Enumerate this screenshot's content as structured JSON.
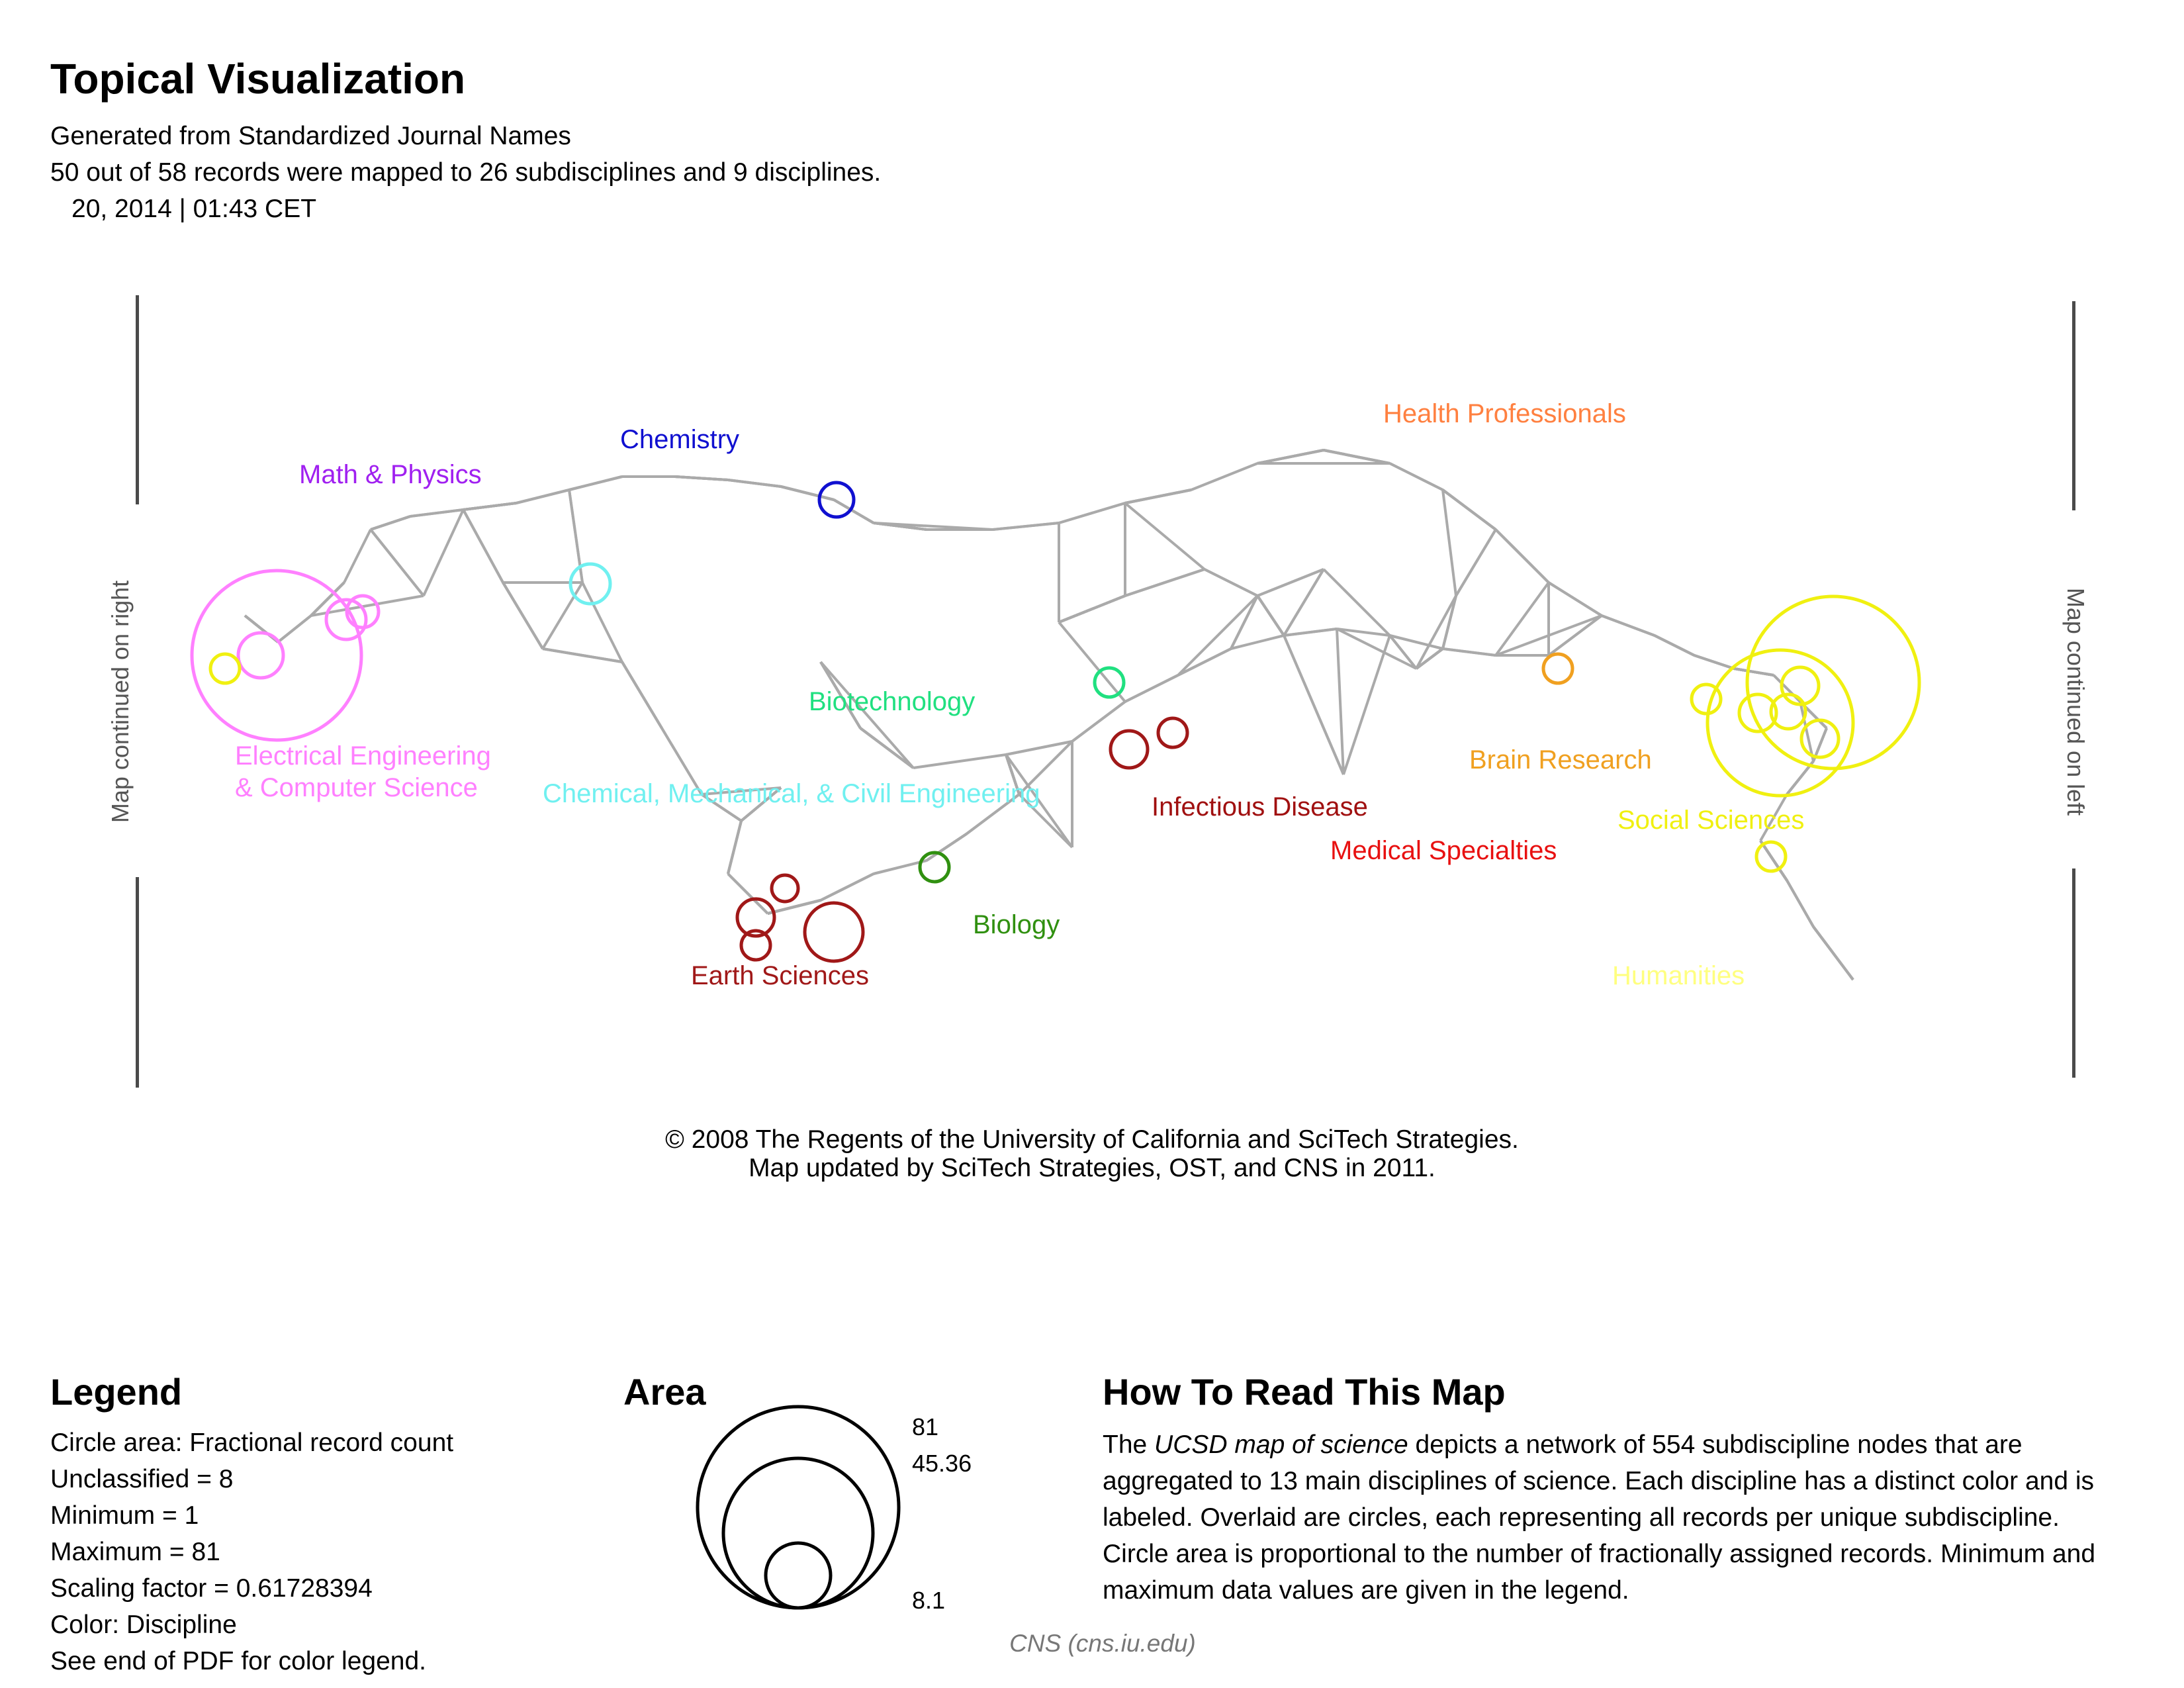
{
  "header": {
    "title": "Topical Visualization",
    "line1": "Generated from Standardized Journal Names",
    "line2": "50 out of 58 records were mapped to 26 subdisciplines and 9 disciplines.",
    "line3": "20, 2014 | 01:43    CET"
  },
  "map": {
    "side_left": "Map continued on right",
    "side_right": "Map continued on left",
    "edge_color": "#aaaaaa",
    "disciplines": [
      {
        "label": "Math & Physics",
        "color": "#a020f0"
      },
      {
        "label": "Chemistry",
        "color": "#1010d0"
      },
      {
        "label": "Health Professionals",
        "color": "#ff8040"
      },
      {
        "label": "Electrical Engineering",
        "color": "#ff80ff"
      },
      {
        "label": "& Computer Science",
        "color": "#ff80ff"
      },
      {
        "label": "Biotechnology",
        "color": "#20e080"
      },
      {
        "label": "Chemical, Mechanical, & Civil Engineering",
        "color": "#70f0f0"
      },
      {
        "label": "Infectious Disease",
        "color": "#a01010"
      },
      {
        "label": "Medical Specialties",
        "color": "#e81010"
      },
      {
        "label": "Brain Research",
        "color": "#f0a020"
      },
      {
        "label": "Social Sciences",
        "color": "#f0f010"
      },
      {
        "label": "Biology",
        "color": "#309010"
      },
      {
        "label": "Earth Sciences",
        "color": "#a01818"
      },
      {
        "label": "Humanities",
        "color": "#ffff80"
      }
    ]
  },
  "copyright": {
    "line1": "© 2008  The Regents of the University of California and SciTech Strategies.",
    "line2": "Map updated  by SciTech Strategies, OST, and CNS in 2011."
  },
  "legend": {
    "title": "Legend",
    "lines": [
      "Circle area: Fractional record count",
      "Unclassified = 8",
      "Minimum = 1",
      "Maximum = 81",
      "Scaling factor = 0.61728394",
      "Color: Discipline",
      "See end of PDF for color legend."
    ]
  },
  "area": {
    "title": "Area",
    "values": [
      "81",
      "45.36",
      "8.1"
    ]
  },
  "howto": {
    "title": "How To Read This Map",
    "pre": "The ",
    "em": "UCSD map of science",
    "post": " depicts a network of 554 subdiscipline nodes that are aggregated to 13 main disciplines of science. Each discipline has a distinct color and is labeled. Overlaid are circles, each representing all records per unique subdiscipline. Circle area is proportional to the number of fractionally assigned records. Minimum and maximum data values are given in the legend."
  },
  "credit": "CNS (cns.iu.edu)"
}
